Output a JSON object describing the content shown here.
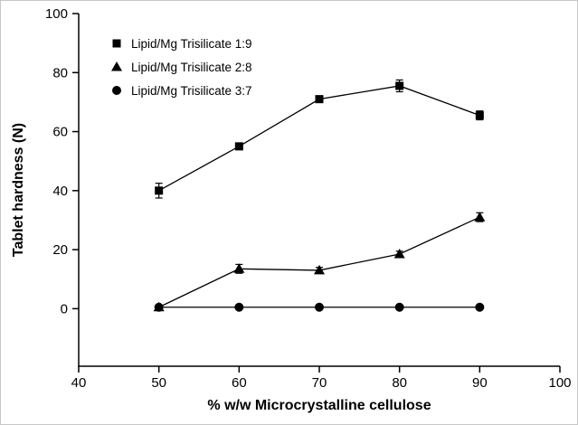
{
  "chart_data": {
    "type": "line",
    "title": "",
    "xlabel": "% w/w Microcrystalline cellulose",
    "ylabel": "Tablet hardness (N)",
    "x": [
      50,
      60,
      70,
      80,
      90
    ],
    "series": [
      {
        "name": "Lipid/Mg Trisilicate 1:9",
        "marker": "square",
        "values": [
          40,
          55,
          71,
          75.5,
          65.5
        ],
        "errors": [
          2.5,
          1,
          1,
          2,
          1.5
        ]
      },
      {
        "name": "Lipid/Mg Trisilicate 2:8",
        "marker": "triangle",
        "values": [
          0.5,
          13.5,
          13,
          18.5,
          31
        ],
        "errors": [
          0.5,
          1.5,
          1,
          1,
          1.5
        ]
      },
      {
        "name": "Lipid/Mg Trisilicate 3:7",
        "marker": "circle",
        "values": [
          0.5,
          0.5,
          0.5,
          0.5,
          0.5
        ],
        "errors": [
          0.4,
          0.4,
          0.4,
          0.4,
          0.4
        ]
      }
    ],
    "xlim": [
      40,
      100
    ],
    "ylim": [
      -19.5,
      100
    ],
    "xticks": [
      40,
      50,
      60,
      70,
      80,
      90,
      100
    ],
    "yticks": [
      0,
      20,
      40,
      60,
      80,
      100
    ],
    "grid": false,
    "legend_position": "top-left-inside",
    "line_color": "#000000",
    "marker_color": "#000000",
    "axis_color": "#000000",
    "background": "#ffffff"
  }
}
